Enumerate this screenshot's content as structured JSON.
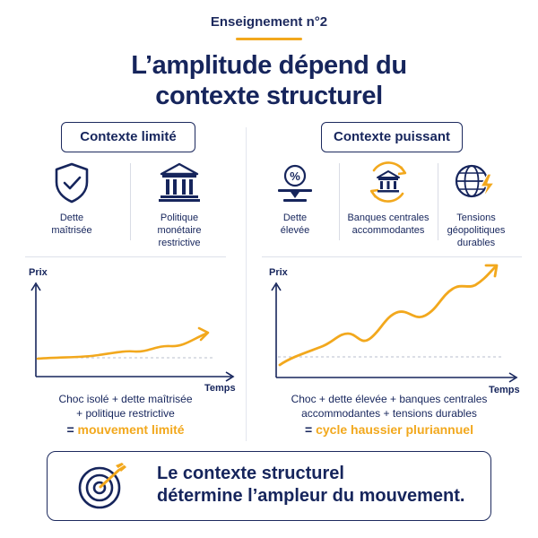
{
  "header": {
    "kicker": "Enseignement n°2",
    "title_line1": "L’amplitude dépend du",
    "title_line2": "contexte structurel"
  },
  "left": {
    "heading": "Contexte limité",
    "factors": [
      {
        "icon": "shield-check-icon",
        "label_lines": [
          "Dette",
          "maîtrisée"
        ]
      },
      {
        "icon": "bank-building-icon",
        "label_lines": [
          "Politique",
          "monétaire",
          "restrictive"
        ]
      }
    ],
    "chart": {
      "ylabel": "Prix",
      "xlabel": "Temps"
    },
    "caption_lines": [
      "Choc isolé + dette maîtrisée",
      "+ politique restrictive"
    ],
    "result_prefix": "=",
    "result": "mouvement limité"
  },
  "right": {
    "heading": "Contexte puissant",
    "factors": [
      {
        "icon": "debt-percent-scale-icon",
        "label_lines": [
          "Dette",
          "élevée"
        ]
      },
      {
        "icon": "bank-cycle-icon",
        "label_lines": [
          "Banques centrales",
          "accommodantes"
        ]
      },
      {
        "icon": "globe-lightning-icon",
        "label_lines": [
          "Tensions",
          "géopolitiques",
          "durables"
        ]
      }
    ],
    "chart": {
      "ylabel": "Prix",
      "xlabel": "Temps"
    },
    "caption_lines": [
      "Choc + dette élevée + banques centrales",
      "accommodantes + tensions durables"
    ],
    "result_prefix": "=",
    "result": "cycle haussier pluriannuel"
  },
  "conclusion": {
    "icon": "target-arrow-icon",
    "line1": "Le contexte structurel",
    "line2": "détermine l’ampleur du mouvement."
  },
  "colors": {
    "navy": "#16255c",
    "accent": "#f2a81d"
  }
}
